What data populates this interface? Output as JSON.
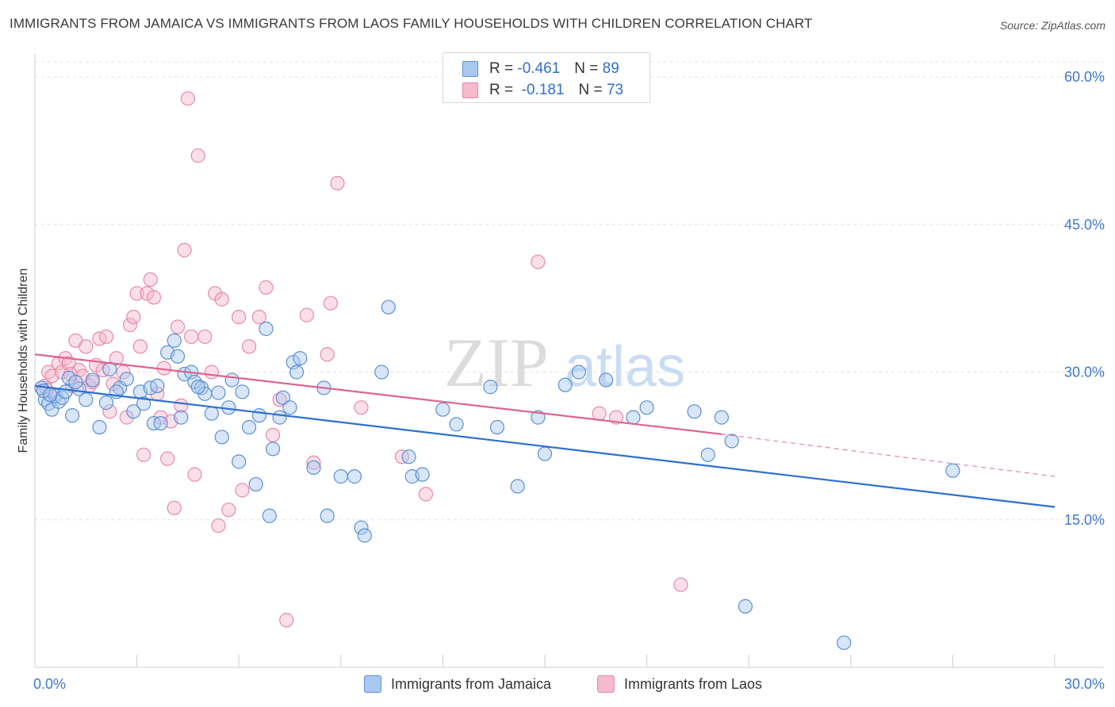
{
  "title": "IMMIGRANTS FROM JAMAICA VS IMMIGRANTS FROM LAOS FAMILY HOUSEHOLDS WITH CHILDREN CORRELATION CHART",
  "source": "Source: ZipAtlas.com",
  "watermark": {
    "zip": "ZIP",
    "atlas": "atlas"
  },
  "legend": {
    "jamaica": {
      "r_label": "R =",
      "r_value": "-0.461",
      "n_label": "N =",
      "n_value": "89"
    },
    "laos": {
      "r_label": "R =",
      "r_value": "-0.181",
      "n_label": "N =",
      "n_value": "73"
    }
  },
  "bottom_legend": {
    "jamaica": "Immigrants from Jamaica",
    "laos": "Immigrants from Laos"
  },
  "colors": {
    "jamaica_fill": "#a9c8f0",
    "jamaica_stroke": "#5b8fd6",
    "jamaica_line": "#2c6fd1",
    "laos_fill": "#f7b9cc",
    "laos_stroke": "#e68aa8",
    "laos_line": "#e0648e",
    "tick": "#3d79d4",
    "grid": "#e3e3e3"
  },
  "chart_data": {
    "type": "scatter",
    "title": "IMMIGRANTS FROM JAMAICA VS IMMIGRANTS FROM LAOS FAMILY HOUSEHOLDS WITH CHILDREN CORRELATION CHART",
    "xlabel": "",
    "ylabel": "Family Households with Children",
    "xlim": [
      0,
      30
    ],
    "ylim": [
      0,
      60
    ],
    "x_tick_labels": [
      {
        "value": 0,
        "label": "0.0%"
      },
      {
        "value": 30,
        "label": "30.0%"
      }
    ],
    "y_tick_labels": [
      {
        "value": 15,
        "label": "15.0%"
      },
      {
        "value": 30,
        "label": "30.0%"
      },
      {
        "value": 45,
        "label": "45.0%"
      },
      {
        "value": 60,
        "label": "60.0%"
      }
    ],
    "series": [
      {
        "name": "Immigrants from Jamaica",
        "color": "#5b8fd6",
        "trend": {
          "x0": 0,
          "y0": 28.6,
          "x1": 30,
          "y1": 16.3
        },
        "points": [
          [
            0.2,
            28.4
          ],
          [
            0.3,
            27.2
          ],
          [
            0.4,
            26.8
          ],
          [
            0.5,
            26.2
          ],
          [
            0.6,
            27.6
          ],
          [
            0.7,
            27.0
          ],
          [
            0.8,
            27.4
          ],
          [
            0.9,
            28.0
          ],
          [
            1.0,
            29.4
          ],
          [
            1.1,
            25.6
          ],
          [
            1.3,
            28.3
          ],
          [
            1.5,
            27.2
          ],
          [
            1.7,
            29.2
          ],
          [
            1.9,
            24.4
          ],
          [
            2.1,
            26.9
          ],
          [
            2.2,
            30.3
          ],
          [
            2.5,
            28.4
          ],
          [
            2.7,
            29.3
          ],
          [
            2.9,
            26.0
          ],
          [
            3.1,
            28.0
          ],
          [
            3.2,
            26.8
          ],
          [
            3.4,
            28.4
          ],
          [
            3.5,
            24.8
          ],
          [
            3.6,
            28.6
          ],
          [
            3.7,
            24.8
          ],
          [
            3.9,
            32.0
          ],
          [
            4.1,
            33.2
          ],
          [
            4.2,
            31.6
          ],
          [
            4.3,
            25.4
          ],
          [
            4.4,
            29.8
          ],
          [
            4.6,
            30.0
          ],
          [
            4.7,
            29.0
          ],
          [
            4.9,
            28.4
          ],
          [
            5.0,
            27.8
          ],
          [
            5.2,
            25.8
          ],
          [
            5.4,
            27.9
          ],
          [
            5.5,
            23.4
          ],
          [
            5.7,
            26.4
          ],
          [
            5.8,
            29.2
          ],
          [
            6.0,
            20.9
          ],
          [
            6.1,
            28.0
          ],
          [
            6.3,
            24.4
          ],
          [
            6.5,
            18.6
          ],
          [
            6.6,
            25.6
          ],
          [
            6.8,
            34.4
          ],
          [
            7.0,
            22.2
          ],
          [
            7.2,
            25.4
          ],
          [
            7.3,
            27.4
          ],
          [
            7.5,
            26.4
          ],
          [
            7.6,
            31.0
          ],
          [
            7.7,
            30.0
          ],
          [
            7.8,
            31.4
          ],
          [
            8.2,
            20.3
          ],
          [
            8.5,
            28.4
          ],
          [
            8.6,
            15.4
          ],
          [
            9.0,
            19.4
          ],
          [
            9.4,
            19.4
          ],
          [
            9.6,
            14.2
          ],
          [
            9.7,
            13.4
          ],
          [
            10.2,
            30.0
          ],
          [
            10.4,
            36.6
          ],
          [
            11.0,
            21.4
          ],
          [
            11.1,
            19.4
          ],
          [
            11.4,
            19.6
          ],
          [
            12.0,
            26.2
          ],
          [
            12.4,
            24.7
          ],
          [
            13.4,
            28.5
          ],
          [
            13.6,
            24.4
          ],
          [
            14.2,
            18.4
          ],
          [
            14.8,
            25.4
          ],
          [
            15.0,
            21.7
          ],
          [
            15.6,
            28.7
          ],
          [
            16.0,
            30.0
          ],
          [
            16.8,
            29.2
          ],
          [
            17.6,
            25.4
          ],
          [
            18.0,
            26.4
          ],
          [
            19.4,
            26.0
          ],
          [
            19.8,
            21.6
          ],
          [
            20.2,
            25.4
          ],
          [
            20.5,
            23.0
          ],
          [
            20.9,
            6.2
          ],
          [
            23.8,
            2.5
          ],
          [
            27.0,
            20.0
          ],
          [
            0.25,
            28.1
          ],
          [
            0.45,
            27.7
          ],
          [
            1.2,
            29.0
          ],
          [
            2.4,
            28.0
          ],
          [
            6.9,
            15.4
          ],
          [
            4.8,
            28.5
          ]
        ]
      },
      {
        "name": "Immigrants from Laos",
        "color": "#e68aa8",
        "trend": {
          "x0": 0,
          "y0": 31.8,
          "x1": 20.2,
          "y1": 23.7
        },
        "trend_dashed": {
          "x0": 20.2,
          "y0": 23.7,
          "x1": 30,
          "y1": 19.4
        },
        "points": [
          [
            0.3,
            28.6
          ],
          [
            0.4,
            30.0
          ],
          [
            0.5,
            29.6
          ],
          [
            0.6,
            27.6
          ],
          [
            0.7,
            30.9
          ],
          [
            0.8,
            30.0
          ],
          [
            0.9,
            31.4
          ],
          [
            1.0,
            30.9
          ],
          [
            1.1,
            28.6
          ],
          [
            1.2,
            33.2
          ],
          [
            1.3,
            30.2
          ],
          [
            1.4,
            29.6
          ],
          [
            1.5,
            32.6
          ],
          [
            1.6,
            28.6
          ],
          [
            1.7,
            29.0
          ],
          [
            1.8,
            30.7
          ],
          [
            1.9,
            33.4
          ],
          [
            2.0,
            30.2
          ],
          [
            2.1,
            33.6
          ],
          [
            2.2,
            26.0
          ],
          [
            2.3,
            28.8
          ],
          [
            2.4,
            31.4
          ],
          [
            2.6,
            30.0
          ],
          [
            2.7,
            25.4
          ],
          [
            2.8,
            34.8
          ],
          [
            2.9,
            35.6
          ],
          [
            3.0,
            38.0
          ],
          [
            3.1,
            32.6
          ],
          [
            3.2,
            21.6
          ],
          [
            3.3,
            38.0
          ],
          [
            3.4,
            39.4
          ],
          [
            3.5,
            37.6
          ],
          [
            3.6,
            27.8
          ],
          [
            3.7,
            25.4
          ],
          [
            3.8,
            30.4
          ],
          [
            3.9,
            21.2
          ],
          [
            4.0,
            25.0
          ],
          [
            4.1,
            16.2
          ],
          [
            4.2,
            34.6
          ],
          [
            4.3,
            26.6
          ],
          [
            4.4,
            42.4
          ],
          [
            4.5,
            57.8
          ],
          [
            4.6,
            33.6
          ],
          [
            4.7,
            19.6
          ],
          [
            4.8,
            52.0
          ],
          [
            5.0,
            33.6
          ],
          [
            5.2,
            30.0
          ],
          [
            5.3,
            38.0
          ],
          [
            5.4,
            14.4
          ],
          [
            5.5,
            37.4
          ],
          [
            5.7,
            16.0
          ],
          [
            6.0,
            35.6
          ],
          [
            6.1,
            18.0
          ],
          [
            6.3,
            32.6
          ],
          [
            6.6,
            35.6
          ],
          [
            6.8,
            38.6
          ],
          [
            7.0,
            23.6
          ],
          [
            7.2,
            27.2
          ],
          [
            7.4,
            4.8
          ],
          [
            8.0,
            35.8
          ],
          [
            8.2,
            20.8
          ],
          [
            8.6,
            31.8
          ],
          [
            8.7,
            37.0
          ],
          [
            8.9,
            49.2
          ],
          [
            9.6,
            26.4
          ],
          [
            10.8,
            21.4
          ],
          [
            11.5,
            17.6
          ],
          [
            14.8,
            41.2
          ],
          [
            16.6,
            25.8
          ],
          [
            17.1,
            25.4
          ],
          [
            19.0,
            8.4
          ],
          [
            0.35,
            28.2
          ],
          [
            1.05,
            29.8
          ]
        ]
      }
    ]
  }
}
